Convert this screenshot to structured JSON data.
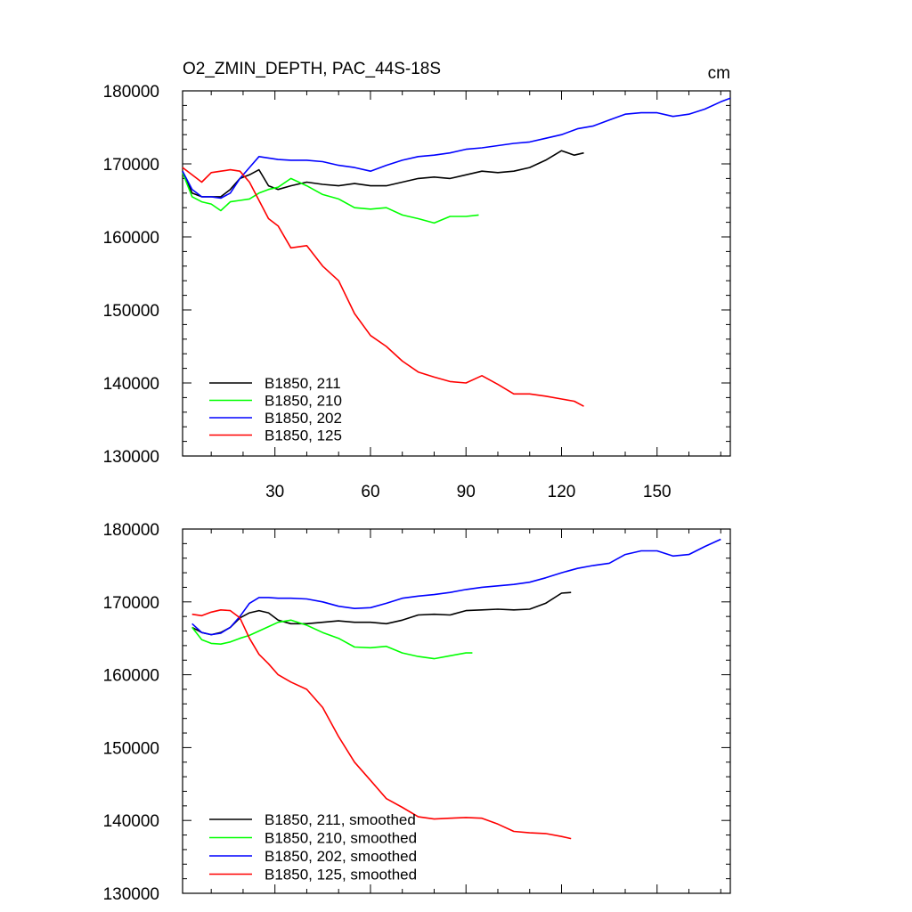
{
  "chart_data": [
    {
      "type": "line",
      "title": "O2_ZMIN_DEPTH, PAC_44S-18S",
      "units": "cm",
      "xlabel": "",
      "ylabel": "",
      "xlim": [
        1,
        173
      ],
      "ylim": [
        130000,
        180000
      ],
      "xticks": [
        30,
        60,
        90,
        120,
        150
      ],
      "xtick_labels": [
        "30",
        "60",
        "90",
        "120",
        "150"
      ],
      "yticks": [
        130000,
        140000,
        150000,
        160000,
        170000,
        180000
      ],
      "ytick_labels": [
        "130000",
        "140000",
        "150000",
        "160000",
        "170000",
        "180000"
      ],
      "legend_position": "bottom-left",
      "series": [
        {
          "name": "B1850, 211",
          "color": "#000000",
          "x": [
            1,
            4,
            7,
            10,
            13,
            16,
            19,
            22,
            25,
            28,
            31,
            35,
            40,
            45,
            50,
            55,
            60,
            65,
            70,
            75,
            80,
            85,
            90,
            95,
            100,
            105,
            110,
            115,
            120,
            124,
            127
          ],
          "y": [
            169000,
            166000,
            165500,
            165500,
            165500,
            166500,
            168000,
            168500,
            169200,
            167000,
            166500,
            167000,
            167500,
            167200,
            167000,
            167300,
            167000,
            167000,
            167500,
            168000,
            168200,
            168000,
            168500,
            169000,
            168800,
            169000,
            169500,
            170500,
            171800,
            171200,
            171500
          ]
        },
        {
          "name": "B1850, 210",
          "color": "#00ff00",
          "x": [
            1,
            4,
            7,
            10,
            13,
            16,
            19,
            22,
            25,
            28,
            31,
            35,
            40,
            45,
            50,
            55,
            60,
            65,
            70,
            75,
            80,
            85,
            90,
            94
          ],
          "y": [
            168800,
            165500,
            164800,
            164500,
            163600,
            164800,
            165000,
            165200,
            166000,
            166500,
            166800,
            168000,
            167000,
            165800,
            165200,
            164000,
            163800,
            164000,
            163000,
            162500,
            161900,
            162800,
            162800,
            163000
          ]
        },
        {
          "name": "B1850, 202",
          "color": "#0000ff",
          "x": [
            1,
            4,
            7,
            10,
            13,
            16,
            19,
            22,
            25,
            28,
            31,
            35,
            40,
            45,
            50,
            55,
            60,
            65,
            70,
            75,
            80,
            85,
            90,
            95,
            100,
            105,
            110,
            115,
            120,
            125,
            130,
            135,
            140,
            145,
            150,
            155,
            160,
            165,
            170,
            173
          ],
          "y": [
            169000,
            166500,
            165500,
            165500,
            165300,
            166000,
            168000,
            169500,
            171000,
            170800,
            170600,
            170500,
            170500,
            170300,
            169800,
            169500,
            169000,
            169800,
            170500,
            171000,
            171200,
            171500,
            172000,
            172200,
            172500,
            172800,
            173000,
            173500,
            174000,
            174800,
            175200,
            176000,
            176800,
            177000,
            177000,
            176500,
            176800,
            177500,
            178500,
            179000
          ]
        },
        {
          "name": "B1850, 125",
          "color": "#ff0000",
          "x": [
            1,
            4,
            7,
            10,
            13,
            16,
            19,
            22,
            25,
            28,
            31,
            35,
            40,
            45,
            50,
            55,
            60,
            65,
            70,
            75,
            80,
            85,
            90,
            95,
            100,
            105,
            110,
            115,
            120,
            124,
            127
          ],
          "y": [
            169500,
            168500,
            167500,
            168800,
            169000,
            169200,
            169000,
            167500,
            165000,
            162500,
            161500,
            158500,
            158800,
            156000,
            154000,
            149500,
            146500,
            145000,
            143000,
            141500,
            140800,
            140200,
            140000,
            141000,
            139800,
            138500,
            138500,
            138200,
            137800,
            137500,
            136800
          ]
        }
      ]
    },
    {
      "type": "line",
      "title": "",
      "xlabel": "",
      "ylabel": "",
      "xlim": [
        1,
        173
      ],
      "ylim": [
        130000,
        180000
      ],
      "xticks": [
        30,
        60,
        90,
        120,
        150
      ],
      "xtick_labels": [],
      "yticks": [
        130000,
        140000,
        150000,
        160000,
        170000,
        180000
      ],
      "ytick_labels": [
        "130000",
        "140000",
        "150000",
        "160000",
        "170000",
        "180000"
      ],
      "legend_position": "bottom-left",
      "series": [
        {
          "name": "B1850, 211, smoothed",
          "color": "#000000",
          "x": [
            4,
            7,
            10,
            13,
            16,
            19,
            22,
            25,
            28,
            31,
            35,
            40,
            45,
            50,
            55,
            60,
            65,
            70,
            75,
            80,
            85,
            90,
            95,
            100,
            105,
            110,
            115,
            120,
            123
          ],
          "y": [
            166500,
            165800,
            165500,
            165800,
            166500,
            167800,
            168500,
            168800,
            168500,
            167500,
            167000,
            167000,
            167200,
            167400,
            167200,
            167200,
            167000,
            167500,
            168200,
            168300,
            168200,
            168800,
            168900,
            169000,
            168900,
            169000,
            169800,
            171200,
            171300
          ]
        },
        {
          "name": "B1850, 210, smoothed",
          "color": "#00ff00",
          "x": [
            4,
            7,
            10,
            13,
            16,
            19,
            22,
            25,
            28,
            31,
            35,
            40,
            45,
            50,
            55,
            60,
            65,
            70,
            75,
            80,
            85,
            90,
            92
          ],
          "y": [
            166500,
            164800,
            164300,
            164200,
            164500,
            165000,
            165400,
            166000,
            166600,
            167200,
            167500,
            166800,
            165800,
            165000,
            163800,
            163700,
            163900,
            163000,
            162500,
            162200,
            162600,
            163000,
            163000
          ]
        },
        {
          "name": "B1850, 202, smoothed",
          "color": "#0000ff",
          "x": [
            4,
            7,
            10,
            13,
            16,
            19,
            22,
            25,
            28,
            31,
            35,
            40,
            45,
            50,
            55,
            60,
            65,
            70,
            75,
            80,
            85,
            90,
            95,
            100,
            105,
            110,
            115,
            120,
            125,
            130,
            135,
            140,
            145,
            150,
            155,
            160,
            165,
            170
          ],
          "y": [
            167000,
            165800,
            165500,
            165700,
            166500,
            168000,
            169800,
            170600,
            170600,
            170500,
            170500,
            170400,
            170000,
            169400,
            169100,
            169200,
            169800,
            170500,
            170800,
            171000,
            171300,
            171700,
            172000,
            172200,
            172400,
            172700,
            173300,
            174000,
            174600,
            175000,
            175300,
            176500,
            177000,
            177000,
            176300,
            176500,
            177600,
            178600
          ]
        },
        {
          "name": "B1850, 125, smoothed",
          "color": "#ff0000",
          "x": [
            4,
            7,
            10,
            13,
            16,
            19,
            22,
            25,
            28,
            31,
            35,
            40,
            45,
            50,
            55,
            60,
            65,
            70,
            75,
            80,
            85,
            90,
            95,
            100,
            105,
            110,
            115,
            120,
            123
          ],
          "y": [
            168300,
            168100,
            168600,
            168900,
            168800,
            167800,
            165000,
            162800,
            161500,
            160000,
            159000,
            158000,
            155500,
            151500,
            148000,
            145500,
            143000,
            141800,
            140500,
            140200,
            140300,
            140400,
            140300,
            139500,
            138500,
            138300,
            138200,
            137800,
            137500
          ]
        }
      ]
    }
  ]
}
